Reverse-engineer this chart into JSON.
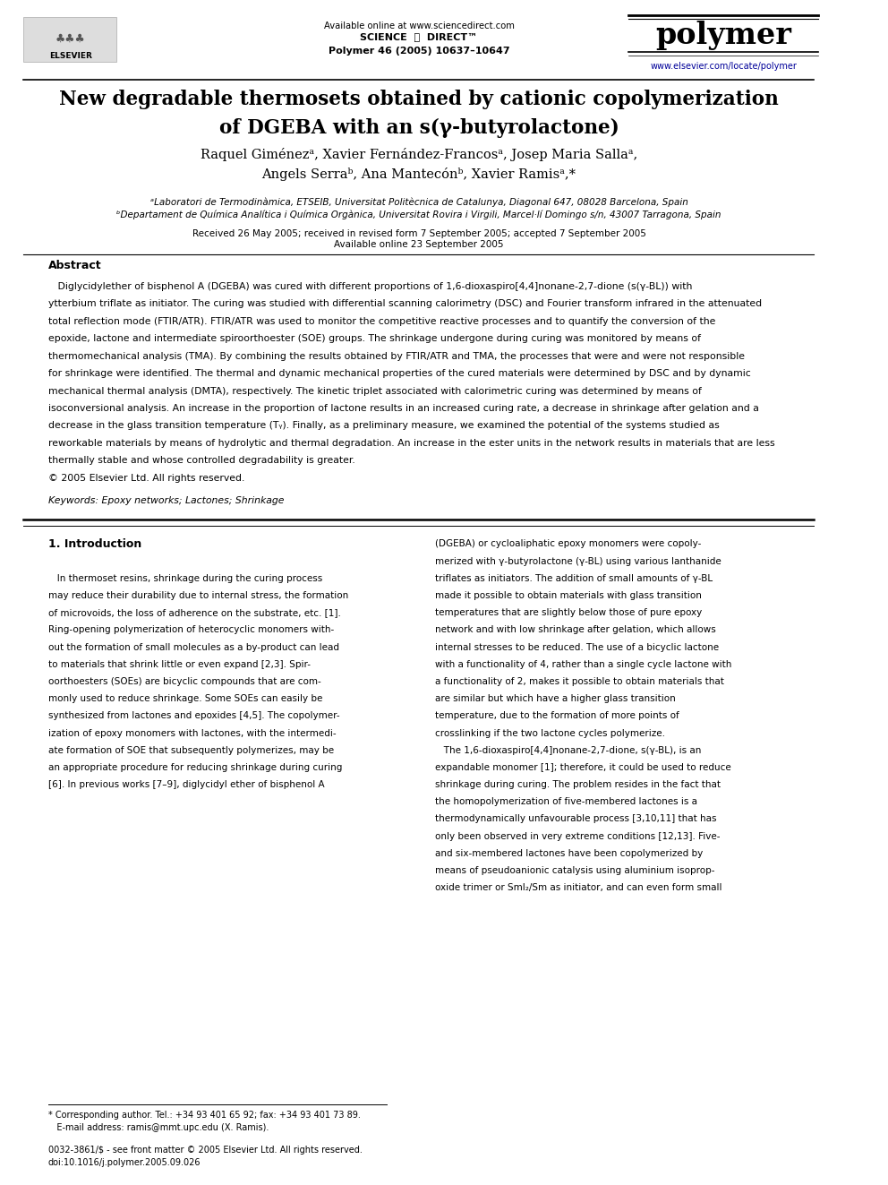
{
  "bg_color": "#ffffff",
  "header": {
    "available_online": "Available online at www.sciencedirect.com",
    "journal_info": "Polymer 46 (2005) 10637–10647",
    "journal_name": "polymer",
    "journal_url": "www.elsevier.com/locate/polymer"
  },
  "title": "New degradable thermosets obtained by cationic copolymerization\nof DGEBA with an s(γ-butyrolactone)",
  "authors": "Raquel Giménezᵃ, Xavier Fernández-Francosᵃ, Josep Maria Sallaᵃ,\nAngels Serraᵇ, Ana Mantecónᵇ, Xavier Ramisᵃ,*",
  "affil_a": "ᵃLaboratori de Termodinàmica, ETSEIB, Universitat Politècnica de Catalunya, Diagonal 647, 08028 Barcelona, Spain",
  "affil_b": "ᵇDepartament de Química Analítica i Química Orgànica, Universitat Rovira i Virgili, Marcel·lí Domingo s/n, 43007 Tarragona, Spain",
  "received": "Received 26 May 2005; received in revised form 7 September 2005; accepted 7 September 2005",
  "available": "Available online 23 September 2005",
  "abstract_title": "Abstract",
  "abstract_text": "   Diglycidylether of bisphenol A (DGEBA) was cured with different proportions of 1,6-dioxaspiro[4,4]nonane-2,7-dione (s(γ-BL)) with\nytterbium triflate as initiator. The curing was studied with differential scanning calorimetry (DSC) and Fourier transform infrared in the attenuated\ntotal reflection mode (FTIR/ATR). FTIR/ATR was used to monitor the competitive reactive processes and to quantify the conversion of the\nepoxide, lactone and intermediate spiroorthoester (SOE) groups. The shrinkage undergone during curing was monitored by means of\nthermomechanical analysis (TMA). By combining the results obtained by FTIR/ATR and TMA, the processes that were and were not responsible\nfor shrinkage were identified. The thermal and dynamic mechanical properties of the cured materials were determined by DSC and by dynamic\nmechanical thermal analysis (DMTA), respectively. The kinetic triplet associated with calorimetric curing was determined by means of\nisoconversional analysis. An increase in the proportion of lactone results in an increased curing rate, a decrease in shrinkage after gelation and a\ndecrease in the glass transition temperature (Tᵧ). Finally, as a preliminary measure, we examined the potential of the systems studied as\nreworkable materials by means of hydrolytic and thermal degradation. An increase in the ester units in the network results in materials that are less\nthermally stable and whose controlled degradability is greater.\n© 2005 Elsevier Ltd. All rights reserved.",
  "keywords": "Keywords: Epoxy networks; Lactones; Shrinkage",
  "copyright_footer": "0032-3861/$ - see front matter © 2005 Elsevier Ltd. All rights reserved.\ndoi:10.1016/j.polymer.2005.09.026",
  "corresponding_note": "* Corresponding author. Tel.: +34 93 401 65 92; fax: +34 93 401 73 89.\n   E-mail address: ramis@mmt.upc.edu (X. Ramis).",
  "section1_title": "1. Introduction",
  "section1_left": "   In thermoset resins, shrinkage during the curing process\nmay reduce their durability due to internal stress, the formation\nof microvoids, the loss of adherence on the substrate, etc. [1].\nRing-opening polymerization of heterocyclic monomers with-\nout the formation of small molecules as a by-product can lead\nto materials that shrink little or even expand [2,3]. Spir-\noorthoesters (SOEs) are bicyclic compounds that are com-\nmonly used to reduce shrinkage. Some SOEs can easily be\nsynthesized from lactones and epoxides [4,5]. The copolymer-\nization of epoxy monomers with lactones, with the intermedi-\nate formation of SOE that subsequently polymerizes, may be\nan appropriate procedure for reducing shrinkage during curing\n[6]. In previous works [7–9], diglycidyl ether of bisphenol A",
  "section1_right": "(DGEBA) or cycloaliphatic epoxy monomers were copoly-\nmerized with γ-butyrolactone (γ-BL) using various lanthanide\ntriflates as initiators. The addition of small amounts of γ-BL\nmade it possible to obtain materials with glass transition\ntemperatures that are slightly below those of pure epoxy\nnetwork and with low shrinkage after gelation, which allows\ninternal stresses to be reduced. The use of a bicyclic lactone\nwith a functionality of 4, rather than a single cycle lactone with\na functionality of 2, makes it possible to obtain materials that\nare similar but which have a higher glass transition\ntemperature, due to the formation of more points of\ncrosslinking if the two lactone cycles polymerize.\n   The 1,6-dioxaspiro[4,4]nonane-2,7-dione, s(γ-BL), is an\nexpandable monomer [1]; therefore, it could be used to reduce\nshrinkage during curing. The problem resides in the fact that\nthe homopolymerization of five-membered lactones is a\nthermodynamically unfavourable process [3,10,11] that has\nonly been observed in very extreme conditions [12,13]. Five-\nand six-membered lactones have been copolymerized by\nmeans of pseudoanionic catalysis using aluminium isoprop-\noxide trimer or SmI₂/Sm as initiator, and can even form small"
}
